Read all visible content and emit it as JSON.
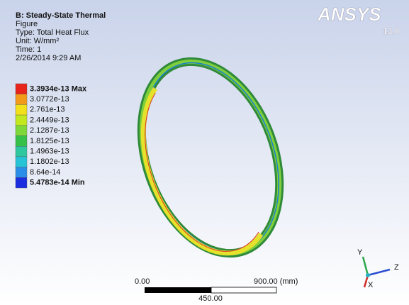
{
  "header": {
    "title": "B: Steady-State Thermal",
    "lines": [
      "Figure",
      "Type: Total Heat Flux",
      "Unit: W/mm²",
      "Time: 1",
      "2/26/2014 9:29 AM"
    ]
  },
  "legend": {
    "entries": [
      "3.3934e-13 Max",
      "3.0772e-13",
      "2.761e-13",
      "2.4449e-13",
      "2.1287e-13",
      "1.8125e-13",
      "1.4963e-13",
      "1.1802e-13",
      "8.64e-14",
      "5.4783e-14 Min"
    ]
  },
  "scale_bar": {
    "start": "0.00",
    "end": "900.00 (mm)",
    "middle": "450.00"
  },
  "triad": {
    "x": "X",
    "y": "Y",
    "z": "Z"
  },
  "logo": {
    "name": "ANSYS",
    "version": "13.0"
  }
}
